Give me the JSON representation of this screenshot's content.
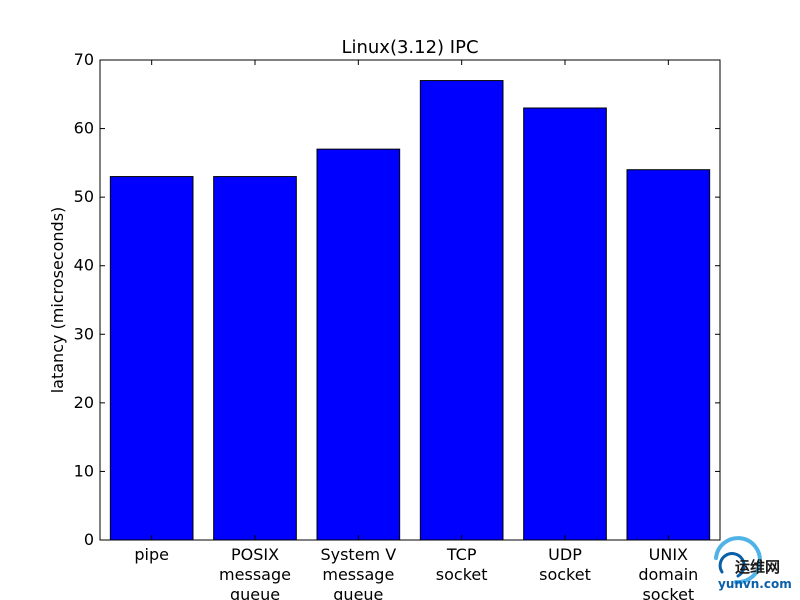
{
  "chart_data": {
    "type": "bar",
    "title": "Linux(3.12) IPC",
    "xlabel": "",
    "ylabel": "latancy (microseconds)",
    "categories": [
      [
        "pipe"
      ],
      [
        "POSIX",
        "message",
        "queue"
      ],
      [
        "System V",
        "message",
        "queue"
      ],
      [
        "TCP",
        "socket"
      ],
      [
        "UDP",
        "socket"
      ],
      [
        "UNIX",
        "domain",
        "socket"
      ]
    ],
    "values": [
      53,
      53,
      57,
      67,
      63,
      54
    ],
    "ylim": [
      0,
      70
    ],
    "yticks": [
      0,
      10,
      20,
      30,
      40,
      50,
      60,
      70
    ],
    "bar_color": "#0000ff",
    "grid": false
  },
  "watermark": {
    "brand_cn": "运维网",
    "brand_en": "yunvn.com"
  },
  "colors": {
    "bar": "#0000ff",
    "axis": "#000000",
    "watermark_blue": "#0a5fa8",
    "watermark_light": "#4fb3e8"
  }
}
